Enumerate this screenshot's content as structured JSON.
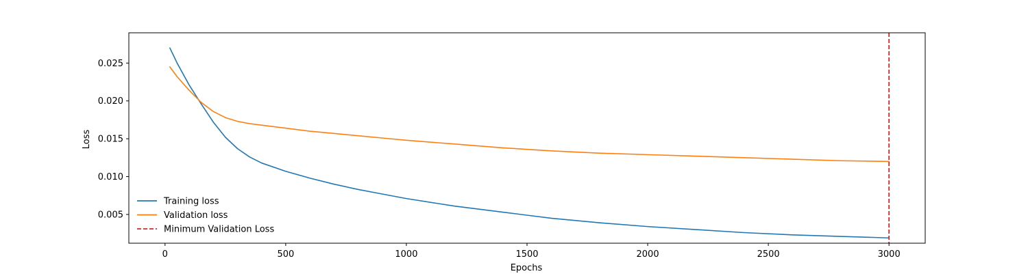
{
  "chart_data": {
    "type": "line",
    "title": "",
    "xlabel": "Epochs",
    "ylabel": "Loss",
    "xlim": [
      -150,
      3150
    ],
    "ylim": [
      0.0012,
      0.029
    ],
    "grid": false,
    "legend_placement": "lower-left",
    "x_ticks": [
      0,
      500,
      1000,
      1500,
      2000,
      2500,
      3000
    ],
    "x_tick_labels": [
      "0",
      "500",
      "1000",
      "1500",
      "2000",
      "2500",
      "3000"
    ],
    "y_ticks": [
      0.005,
      0.01,
      0.015,
      0.02,
      0.025
    ],
    "y_tick_labels": [
      "0.005",
      "0.010",
      "0.015",
      "0.020",
      "0.025"
    ],
    "series": [
      {
        "name": "Training loss",
        "color": "#1f77b4",
        "style": "solid",
        "x": [
          20,
          50,
          100,
          150,
          200,
          250,
          300,
          350,
          400,
          500,
          600,
          700,
          800,
          900,
          1000,
          1200,
          1400,
          1600,
          1800,
          2000,
          2200,
          2400,
          2600,
          2800,
          3000
        ],
        "y": [
          0.027,
          0.025,
          0.0221,
          0.0196,
          0.0172,
          0.0152,
          0.0137,
          0.0126,
          0.0118,
          0.0107,
          0.0098,
          0.009,
          0.0083,
          0.0077,
          0.0071,
          0.0061,
          0.0053,
          0.0045,
          0.0039,
          0.0034,
          0.003,
          0.0026,
          0.0023,
          0.0021,
          0.0019
        ]
      },
      {
        "name": "Validation loss",
        "color": "#ff7f0e",
        "style": "solid",
        "x": [
          20,
          50,
          100,
          150,
          200,
          250,
          300,
          350,
          400,
          500,
          600,
          700,
          800,
          900,
          1000,
          1200,
          1400,
          1600,
          1800,
          2000,
          2200,
          2400,
          2600,
          2800,
          3000
        ],
        "y": [
          0.0245,
          0.0232,
          0.0214,
          0.0198,
          0.0186,
          0.0178,
          0.0173,
          0.017,
          0.0168,
          0.0164,
          0.016,
          0.0157,
          0.0154,
          0.0151,
          0.0148,
          0.0143,
          0.0138,
          0.0134,
          0.0131,
          0.0129,
          0.0127,
          0.0125,
          0.0123,
          0.0121,
          0.012
        ]
      }
    ],
    "vlines": [
      {
        "name": "Minimum Validation Loss",
        "x": 3000,
        "color": "#d62728",
        "style": "dashed"
      }
    ]
  }
}
